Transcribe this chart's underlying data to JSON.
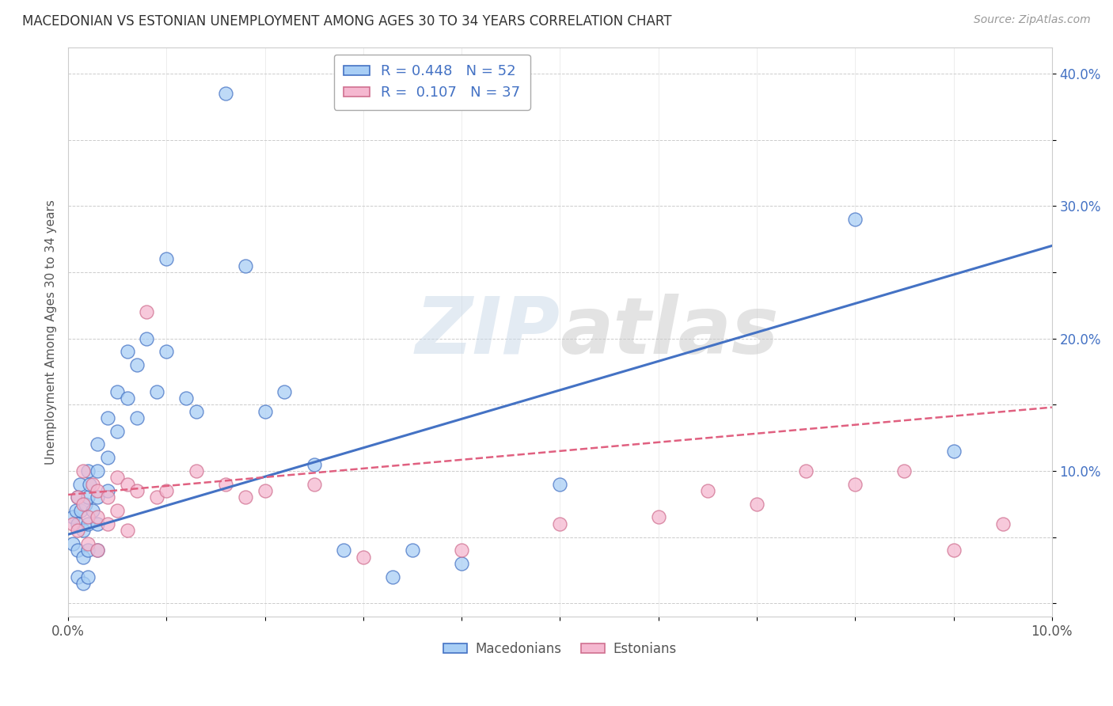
{
  "title": "MACEDONIAN VS ESTONIAN UNEMPLOYMENT AMONG AGES 30 TO 34 YEARS CORRELATION CHART",
  "source": "Source: ZipAtlas.com",
  "ylabel": "Unemployment Among Ages 30 to 34 years",
  "xlim": [
    0.0,
    0.1
  ],
  "ylim": [
    -0.01,
    0.42
  ],
  "xticks": [
    0.0,
    0.01,
    0.02,
    0.03,
    0.04,
    0.05,
    0.06,
    0.07,
    0.08,
    0.09,
    0.1
  ],
  "yticks": [
    0.0,
    0.05,
    0.1,
    0.15,
    0.2,
    0.25,
    0.3,
    0.35,
    0.4
  ],
  "ytick_labels": [
    "",
    "",
    "10.0%",
    "",
    "20.0%",
    "",
    "30.0%",
    "",
    "40.0%"
  ],
  "xtick_labels": [
    "0.0%",
    "",
    "",
    "",
    "",
    "",
    "",
    "",
    "",
    "",
    "10.0%"
  ],
  "macedonian_color": "#A8CEF5",
  "estonian_color": "#F5B8D0",
  "trend_blue": "#4472C4",
  "trend_pink": "#E06080",
  "watermark": "ZIPatlas",
  "legend_R_mac": "R = 0.448",
  "legend_N_mac": "N = 52",
  "legend_R_est": "R =  0.107",
  "legend_N_est": "N = 37",
  "mac_trend_x0": 0.0,
  "mac_trend_y0": 0.052,
  "mac_trend_x1": 0.1,
  "mac_trend_y1": 0.27,
  "est_trend_x0": 0.0,
  "est_trend_y0": 0.082,
  "est_trend_x1": 0.1,
  "est_trend_y1": 0.148,
  "mac_x": [
    0.0005,
    0.0005,
    0.0008,
    0.001,
    0.001,
    0.001,
    0.001,
    0.0012,
    0.0013,
    0.0015,
    0.0015,
    0.0015,
    0.0018,
    0.002,
    0.002,
    0.002,
    0.002,
    0.002,
    0.0022,
    0.0025,
    0.003,
    0.003,
    0.003,
    0.003,
    0.003,
    0.004,
    0.004,
    0.004,
    0.005,
    0.005,
    0.006,
    0.006,
    0.007,
    0.007,
    0.008,
    0.009,
    0.01,
    0.01,
    0.012,
    0.013,
    0.016,
    0.018,
    0.02,
    0.022,
    0.025,
    0.028,
    0.033,
    0.035,
    0.04,
    0.05,
    0.08,
    0.09
  ],
  "mac_y": [
    0.065,
    0.045,
    0.07,
    0.08,
    0.06,
    0.04,
    0.02,
    0.09,
    0.07,
    0.055,
    0.035,
    0.015,
    0.075,
    0.1,
    0.08,
    0.06,
    0.04,
    0.02,
    0.09,
    0.07,
    0.12,
    0.1,
    0.08,
    0.06,
    0.04,
    0.14,
    0.11,
    0.085,
    0.16,
    0.13,
    0.19,
    0.155,
    0.18,
    0.14,
    0.2,
    0.16,
    0.26,
    0.19,
    0.155,
    0.145,
    0.385,
    0.255,
    0.145,
    0.16,
    0.105,
    0.04,
    0.02,
    0.04,
    0.03,
    0.09,
    0.29,
    0.115
  ],
  "est_x": [
    0.0005,
    0.001,
    0.001,
    0.0015,
    0.0015,
    0.002,
    0.002,
    0.0025,
    0.003,
    0.003,
    0.003,
    0.004,
    0.004,
    0.005,
    0.005,
    0.006,
    0.006,
    0.007,
    0.008,
    0.009,
    0.01,
    0.013,
    0.016,
    0.018,
    0.02,
    0.025,
    0.03,
    0.04,
    0.05,
    0.06,
    0.065,
    0.07,
    0.075,
    0.08,
    0.085,
    0.09,
    0.095
  ],
  "est_y": [
    0.06,
    0.08,
    0.055,
    0.1,
    0.075,
    0.065,
    0.045,
    0.09,
    0.085,
    0.065,
    0.04,
    0.08,
    0.06,
    0.095,
    0.07,
    0.09,
    0.055,
    0.085,
    0.22,
    0.08,
    0.085,
    0.1,
    0.09,
    0.08,
    0.085,
    0.09,
    0.035,
    0.04,
    0.06,
    0.065,
    0.085,
    0.075,
    0.1,
    0.09,
    0.1,
    0.04,
    0.06
  ]
}
